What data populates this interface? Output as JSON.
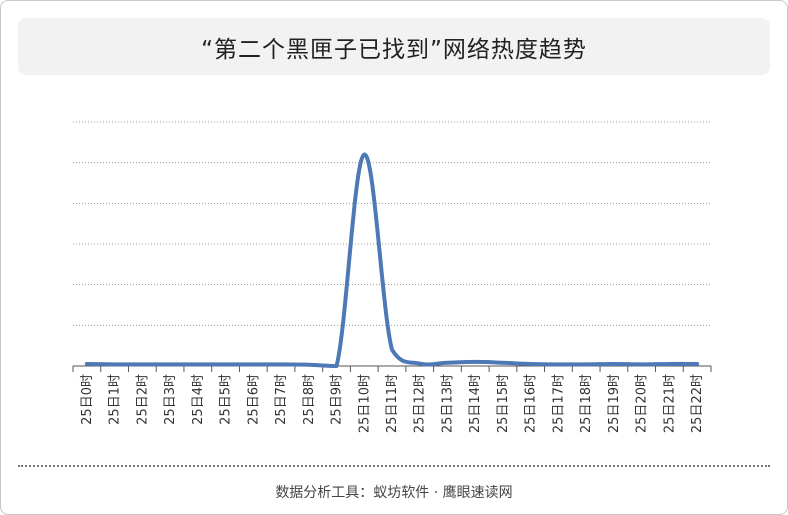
{
  "title": "“第二个黑匣子已找到”网络热度趋势",
  "footer": "数据分析工具：蚁坊软件 · 鹰眼速读网",
  "chart_data": {
    "type": "line",
    "title": "“第二个黑匣子已找到”网络热度趋势",
    "x": [
      "25日0时",
      "25日1时",
      "25日2时",
      "25日3时",
      "25日4时",
      "25日5时",
      "25日6时",
      "25日7时",
      "25日8时",
      "25日9时",
      "25日10时",
      "25日11时",
      "25日12时",
      "25日13时",
      "25日14时",
      "25日15时",
      "25日16时",
      "25日17时",
      "25日18时",
      "25日19时",
      "25日20时",
      "25日21时",
      "25日22时"
    ],
    "series": [
      {
        "values": [
          0.5,
          0.4,
          0.4,
          0.4,
          0.4,
          0.4,
          0.4,
          0.4,
          0.3,
          0.0,
          52.0,
          4.0,
          0.6,
          0.8,
          1.0,
          0.8,
          0.5,
          0.4,
          0.4,
          0.5,
          0.4,
          0.5,
          0.5
        ]
      }
    ],
    "ylim": [
      0,
      60
    ],
    "grid": true,
    "line_color": "#4e79b7"
  }
}
